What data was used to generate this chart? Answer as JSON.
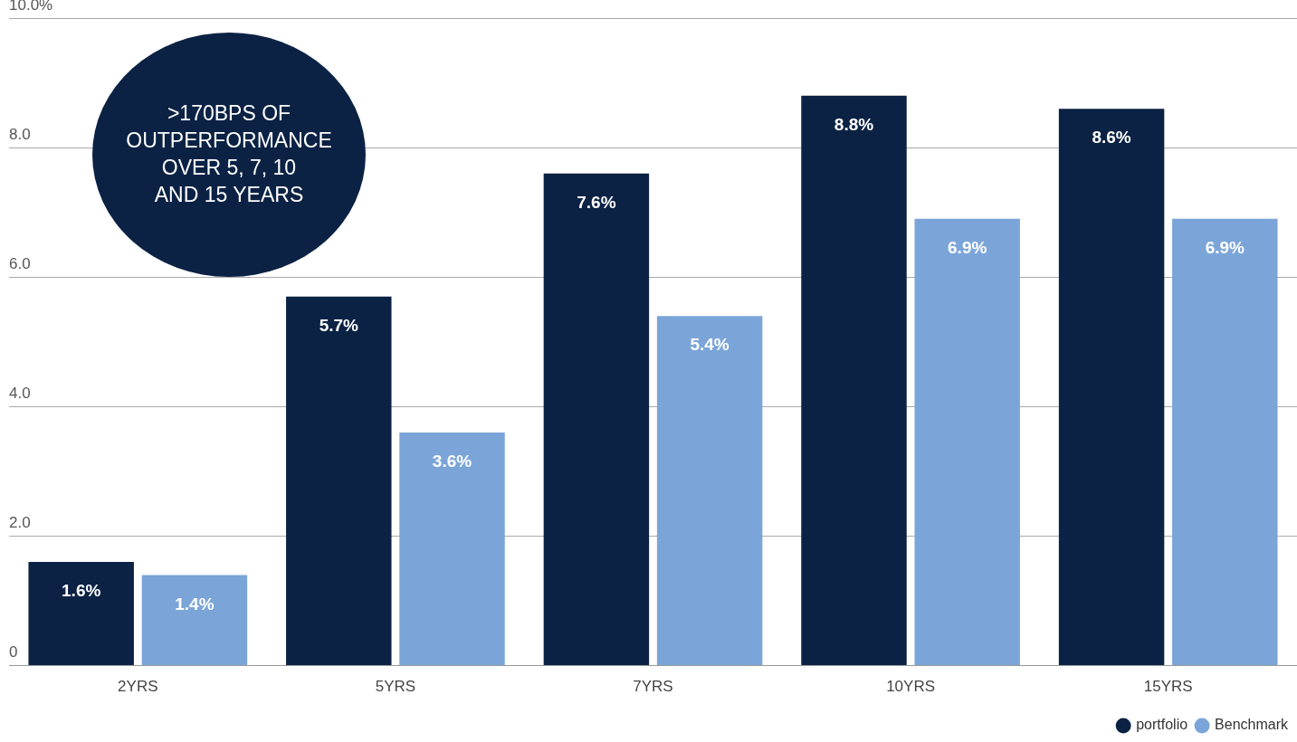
{
  "chart_data": {
    "type": "bar",
    "categories": [
      "2YRS",
      "5YRS",
      "7YRS",
      "10YRS",
      "15YRS"
    ],
    "series": [
      {
        "name": "portfolio",
        "color": "#0b2244",
        "values": [
          1.6,
          5.7,
          7.6,
          8.8,
          8.6
        ],
        "value_labels": [
          "1.6%",
          "5.7%",
          "7.6%",
          "8.8%",
          "8.6%"
        ]
      },
      {
        "name": "Benchmark",
        "color": "#7ba5d8",
        "values": [
          1.4,
          3.6,
          5.4,
          6.9,
          6.9
        ],
        "value_labels": [
          "1.4%",
          "3.6%",
          "5.4%",
          "6.9%",
          "6.9%"
        ]
      }
    ],
    "ylim": [
      0,
      10
    ],
    "yticks": [
      {
        "value": 0,
        "label": "0"
      },
      {
        "value": 2,
        "label": "2.0"
      },
      {
        "value": 4,
        "label": "4.0"
      },
      {
        "value": 6,
        "label": "6.0"
      },
      {
        "value": 8,
        "label": "8.0"
      },
      {
        "value": 10,
        "label": "10.0%"
      }
    ],
    "grid": "y",
    "legend": "bottom right",
    "annotations": [
      ">170BPS OF\nOUTPERFORMANCE\nOVER 5, 7, 10\nAND 15 YEARS"
    ]
  }
}
